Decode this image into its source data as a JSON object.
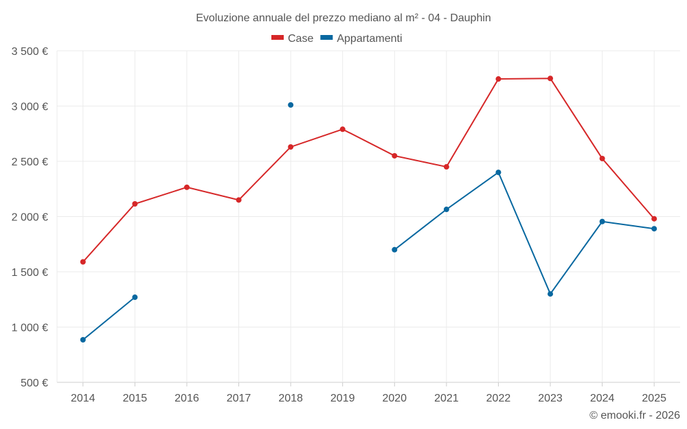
{
  "chart_data": {
    "type": "line",
    "title": "Evoluzione annuale del prezzo mediano al m² - 04 - Dauphin",
    "categories": [
      "2014",
      "2015",
      "2016",
      "2017",
      "2018",
      "2019",
      "2020",
      "2021",
      "2022",
      "2023",
      "2024",
      "2025"
    ],
    "ylim": [
      500,
      3500
    ],
    "yticks": [
      500,
      1000,
      1500,
      2000,
      2500,
      3000,
      3500
    ],
    "ytick_labels": [
      "500 €",
      "1 000 €",
      "1 500 €",
      "2 000 €",
      "2 500 €",
      "3 000 €",
      "3 500 €"
    ],
    "legend_position": "top-center",
    "grid": true,
    "series": [
      {
        "name": "Case",
        "color": "#d62728",
        "values": [
          1590,
          2115,
          2265,
          2150,
          2630,
          2790,
          2550,
          2450,
          3245,
          3250,
          2525,
          1980
        ]
      },
      {
        "name": "Appartamenti",
        "color": "#0868a0",
        "values": [
          885,
          1270,
          null,
          null,
          3010,
          null,
          1700,
          2065,
          2400,
          1300,
          1955,
          1890
        ]
      }
    ]
  },
  "footer": {
    "credit": "© emooki.fr - 2026"
  }
}
